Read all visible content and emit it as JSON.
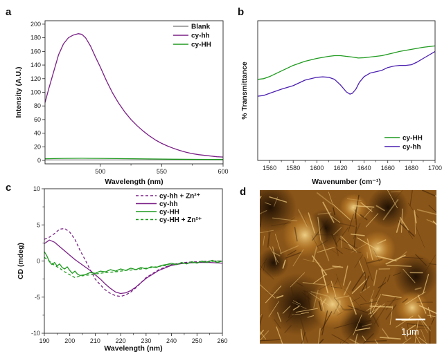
{
  "panels": {
    "a": "a",
    "b": "b",
    "c": "c",
    "d": "d"
  },
  "scale_bar": {
    "label": "1μm"
  },
  "colors": {
    "purple": "#7a1f86",
    "green": "#1e9a1e",
    "gray": "#8a8a8a",
    "indigo": "#4a1fb0",
    "afm_dark": "#2a1503",
    "afm_mid": "#8a5518",
    "afm_light": "#e8c070"
  },
  "chart_data": [
    {
      "id": "a",
      "type": "line",
      "xlabel": "Wavelength (nm)",
      "ylabel": "Intensity (A.U.)",
      "xlim": [
        455,
        600
      ],
      "ylim": [
        -5,
        205
      ],
      "xticks": [
        500,
        550,
        600
      ],
      "yticks": [
        0,
        20,
        40,
        60,
        80,
        100,
        120,
        140,
        160,
        180,
        200
      ],
      "legend_position": "top-right",
      "series": [
        {
          "name": "Blank",
          "color": "#8a8a8a",
          "dash": "",
          "x": [
            455,
            600
          ],
          "y": [
            0.8,
            0.8
          ]
        },
        {
          "name": "cy-hh",
          "color": "#7a1f86",
          "dash": "",
          "x": [
            455,
            458,
            462,
            466,
            470,
            474,
            478,
            482,
            485,
            488,
            492,
            496,
            500,
            505,
            510,
            515,
            520,
            525,
            530,
            535,
            540,
            545,
            550,
            555,
            560,
            565,
            570,
            575,
            580,
            585,
            590,
            595,
            600
          ],
          "y": [
            85,
            105,
            130,
            155,
            171,
            180,
            184,
            186,
            185,
            180,
            168,
            152,
            137,
            117,
            99,
            84,
            71,
            60,
            51,
            43,
            36,
            30,
            25,
            21,
            17.5,
            14.5,
            12,
            10,
            8.5,
            7.5,
            6.5,
            5.5,
            5
          ]
        },
        {
          "name": "cy-HH",
          "color": "#1e9a1e",
          "dash": "",
          "x": [
            455,
            470,
            485,
            500,
            520,
            540,
            560,
            580,
            600
          ],
          "y": [
            2.5,
            3,
            3.2,
            3,
            2.6,
            2.2,
            1.8,
            1.6,
            1.5
          ]
        }
      ]
    },
    {
      "id": "b",
      "type": "line",
      "xlabel": "Wavenumber (cm⁻¹)",
      "ylabel": "% Transmittance",
      "xlim": [
        1550,
        1700
      ],
      "ylim": [
        0,
        100
      ],
      "xticks": [
        1560,
        1580,
        1600,
        1620,
        1640,
        1660,
        1680,
        1700
      ],
      "yticks": [],
      "legend_position": "bottom-right",
      "series": [
        {
          "name": "cy-HH",
          "color": "#1e9a1e",
          "dash": "",
          "x": [
            1550,
            1555,
            1560,
            1570,
            1580,
            1590,
            1600,
            1610,
            1615,
            1620,
            1625,
            1630,
            1635,
            1640,
            1645,
            1650,
            1655,
            1660,
            1665,
            1670,
            1680,
            1690,
            1700
          ],
          "y": [
            58,
            58.5,
            60,
            64,
            68,
            71,
            73,
            74.5,
            75,
            75,
            74.5,
            74,
            73.3,
            73.5,
            74,
            74.5,
            75,
            76,
            77,
            78,
            79.5,
            81,
            82
          ]
        },
        {
          "name": "cy-hh",
          "color": "#4a1fb0",
          "dash": "",
          "x": [
            1550,
            1555,
            1560,
            1570,
            1580,
            1590,
            1600,
            1605,
            1610,
            1615,
            1620,
            1625,
            1628,
            1630,
            1633,
            1636,
            1640,
            1645,
            1650,
            1655,
            1660,
            1665,
            1670,
            1675,
            1680,
            1685,
            1690,
            1695,
            1700
          ],
          "y": [
            46,
            46.5,
            48,
            51,
            53.5,
            57.5,
            59.5,
            59.8,
            59.5,
            58,
            54,
            49,
            47.5,
            48,
            51,
            56,
            60,
            62.5,
            63.5,
            64.5,
            66.5,
            67.5,
            68,
            68,
            68.5,
            70.5,
            73,
            75.5,
            78
          ]
        }
      ]
    },
    {
      "id": "c",
      "type": "line",
      "xlabel": "Wavelength (nm)",
      "ylabel": "CD (mdeg)",
      "xlim": [
        190,
        260
      ],
      "ylim": [
        -10,
        10
      ],
      "xticks": [
        190,
        200,
        210,
        220,
        230,
        240,
        250,
        260
      ],
      "yticks": [
        -10,
        -5,
        0,
        5,
        10
      ],
      "legend_position": "top-right",
      "series": [
        {
          "name": "cy-hh + Zn²⁺",
          "color": "#7a1f86",
          "dash": "4,3",
          "x": [
            190,
            192,
            194,
            196,
            198,
            200,
            202,
            204,
            206,
            208,
            210,
            212,
            214,
            216,
            218,
            220,
            222,
            224,
            226,
            228,
            230,
            235,
            240,
            245,
            250,
            255,
            260
          ],
          "y": [
            3.0,
            3.3,
            3.8,
            4.4,
            4.5,
            4.0,
            3.0,
            1.5,
            0.2,
            -1.2,
            -2.5,
            -3.3,
            -4.0,
            -4.5,
            -4.8,
            -4.9,
            -4.7,
            -4.3,
            -3.7,
            -3.0,
            -2.3,
            -1.2,
            -0.5,
            -0.2,
            -0.1,
            0.0,
            0.0
          ]
        },
        {
          "name": "cy-hh",
          "color": "#7a1f86",
          "dash": "",
          "x": [
            190,
            192,
            194,
            196,
            198,
            200,
            202,
            204,
            206,
            208,
            210,
            212,
            214,
            216,
            218,
            220,
            222,
            224,
            226,
            228,
            230,
            235,
            240,
            245,
            250,
            255,
            260
          ],
          "y": [
            2.4,
            2.9,
            2.6,
            2.0,
            1.4,
            0.8,
            0.2,
            -0.3,
            -0.8,
            -1.3,
            -1.9,
            -2.5,
            -3.2,
            -3.8,
            -4.3,
            -4.5,
            -4.4,
            -4.1,
            -3.6,
            -3.0,
            -2.4,
            -1.3,
            -0.6,
            -0.3,
            -0.2,
            -0.2,
            -0.3
          ]
        },
        {
          "name": "cy-HH",
          "color": "#1e9a1e",
          "dash": "",
          "x": [
            190,
            191,
            192,
            193,
            194,
            195,
            196,
            197,
            198,
            199,
            200,
            201,
            202,
            203,
            204,
            206,
            208,
            210,
            212,
            214,
            216,
            218,
            220,
            222,
            224,
            226,
            228,
            230,
            232,
            234,
            236,
            238,
            240,
            242,
            244,
            246,
            248,
            250,
            252,
            254,
            256,
            258,
            260
          ],
          "y": [
            1.3,
            0.7,
            -0.1,
            -0.5,
            -0.2,
            -0.7,
            -0.4,
            -0.9,
            -1.1,
            -0.8,
            -1.3,
            -1.7,
            -1.4,
            -1.8,
            -2.0,
            -1.9,
            -1.6,
            -1.7,
            -1.4,
            -1.5,
            -1.2,
            -1.4,
            -1.1,
            -1.3,
            -1.0,
            -1.2,
            -0.9,
            -1.1,
            -0.8,
            -0.9,
            -0.6,
            -0.5,
            -0.3,
            -0.5,
            -0.2,
            -0.4,
            -0.1,
            -0.3,
            0.0,
            -0.2,
            0.1,
            -0.2,
            0.0
          ]
        },
        {
          "name": "cy-HH + Zn²⁺",
          "color": "#1e9a1e",
          "dash": "4,3",
          "x": [
            190,
            192,
            194,
            196,
            198,
            200,
            202,
            204,
            206,
            208,
            210,
            214,
            218,
            222,
            226,
            230,
            234,
            238,
            242,
            246,
            250,
            254,
            258,
            260
          ],
          "y": [
            0.5,
            0.0,
            -0.6,
            -1.0,
            -1.5,
            -1.9,
            -2.3,
            -2.1,
            -2.0,
            -1.9,
            -1.8,
            -1.6,
            -1.5,
            -1.3,
            -1.2,
            -1.0,
            -0.8,
            -0.6,
            -0.4,
            -0.3,
            -0.2,
            -0.1,
            0.0,
            0.0
          ]
        }
      ]
    }
  ]
}
